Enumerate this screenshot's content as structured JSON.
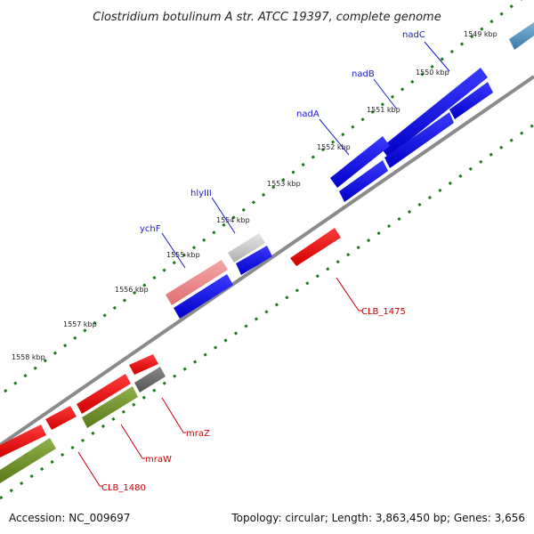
{
  "title": "Clostridium botulinum A str. ATCC 19397, complete genome",
  "footer": {
    "accession": "Accession: NC_009697",
    "summary": "Topology: circular; Length: 3,863,450 bp; Genes: 3,656"
  },
  "scale_labels": [
    "1549 kbp",
    "1550 kbp",
    "1551 kbp",
    "1552 kbp",
    "1553 kbp",
    "1554 kbp",
    "1555 kbp",
    "1556 kbp",
    "1557 kbp",
    "1558 kbp"
  ],
  "gene_labels": {
    "nadC": "nadC",
    "nadB": "nadB",
    "nadA": "nadA",
    "hlyIII": "hlyIII",
    "ychF": "ychF",
    "CLB_1475": "CLB_1475",
    "mraZ": "mraZ",
    "mraW": "mraW",
    "CLB_1480": "CLB_1480"
  },
  "colors": {
    "blue": "#0a0ae0",
    "steel": "#4a8ab8",
    "red": "#ee0000",
    "pink": "#e88080",
    "light_gray": "#c8c8c8",
    "dark_gray": "#666666",
    "olive": "#6b8e23",
    "dots": "#1a7a1a",
    "backbone": "#888888"
  }
}
